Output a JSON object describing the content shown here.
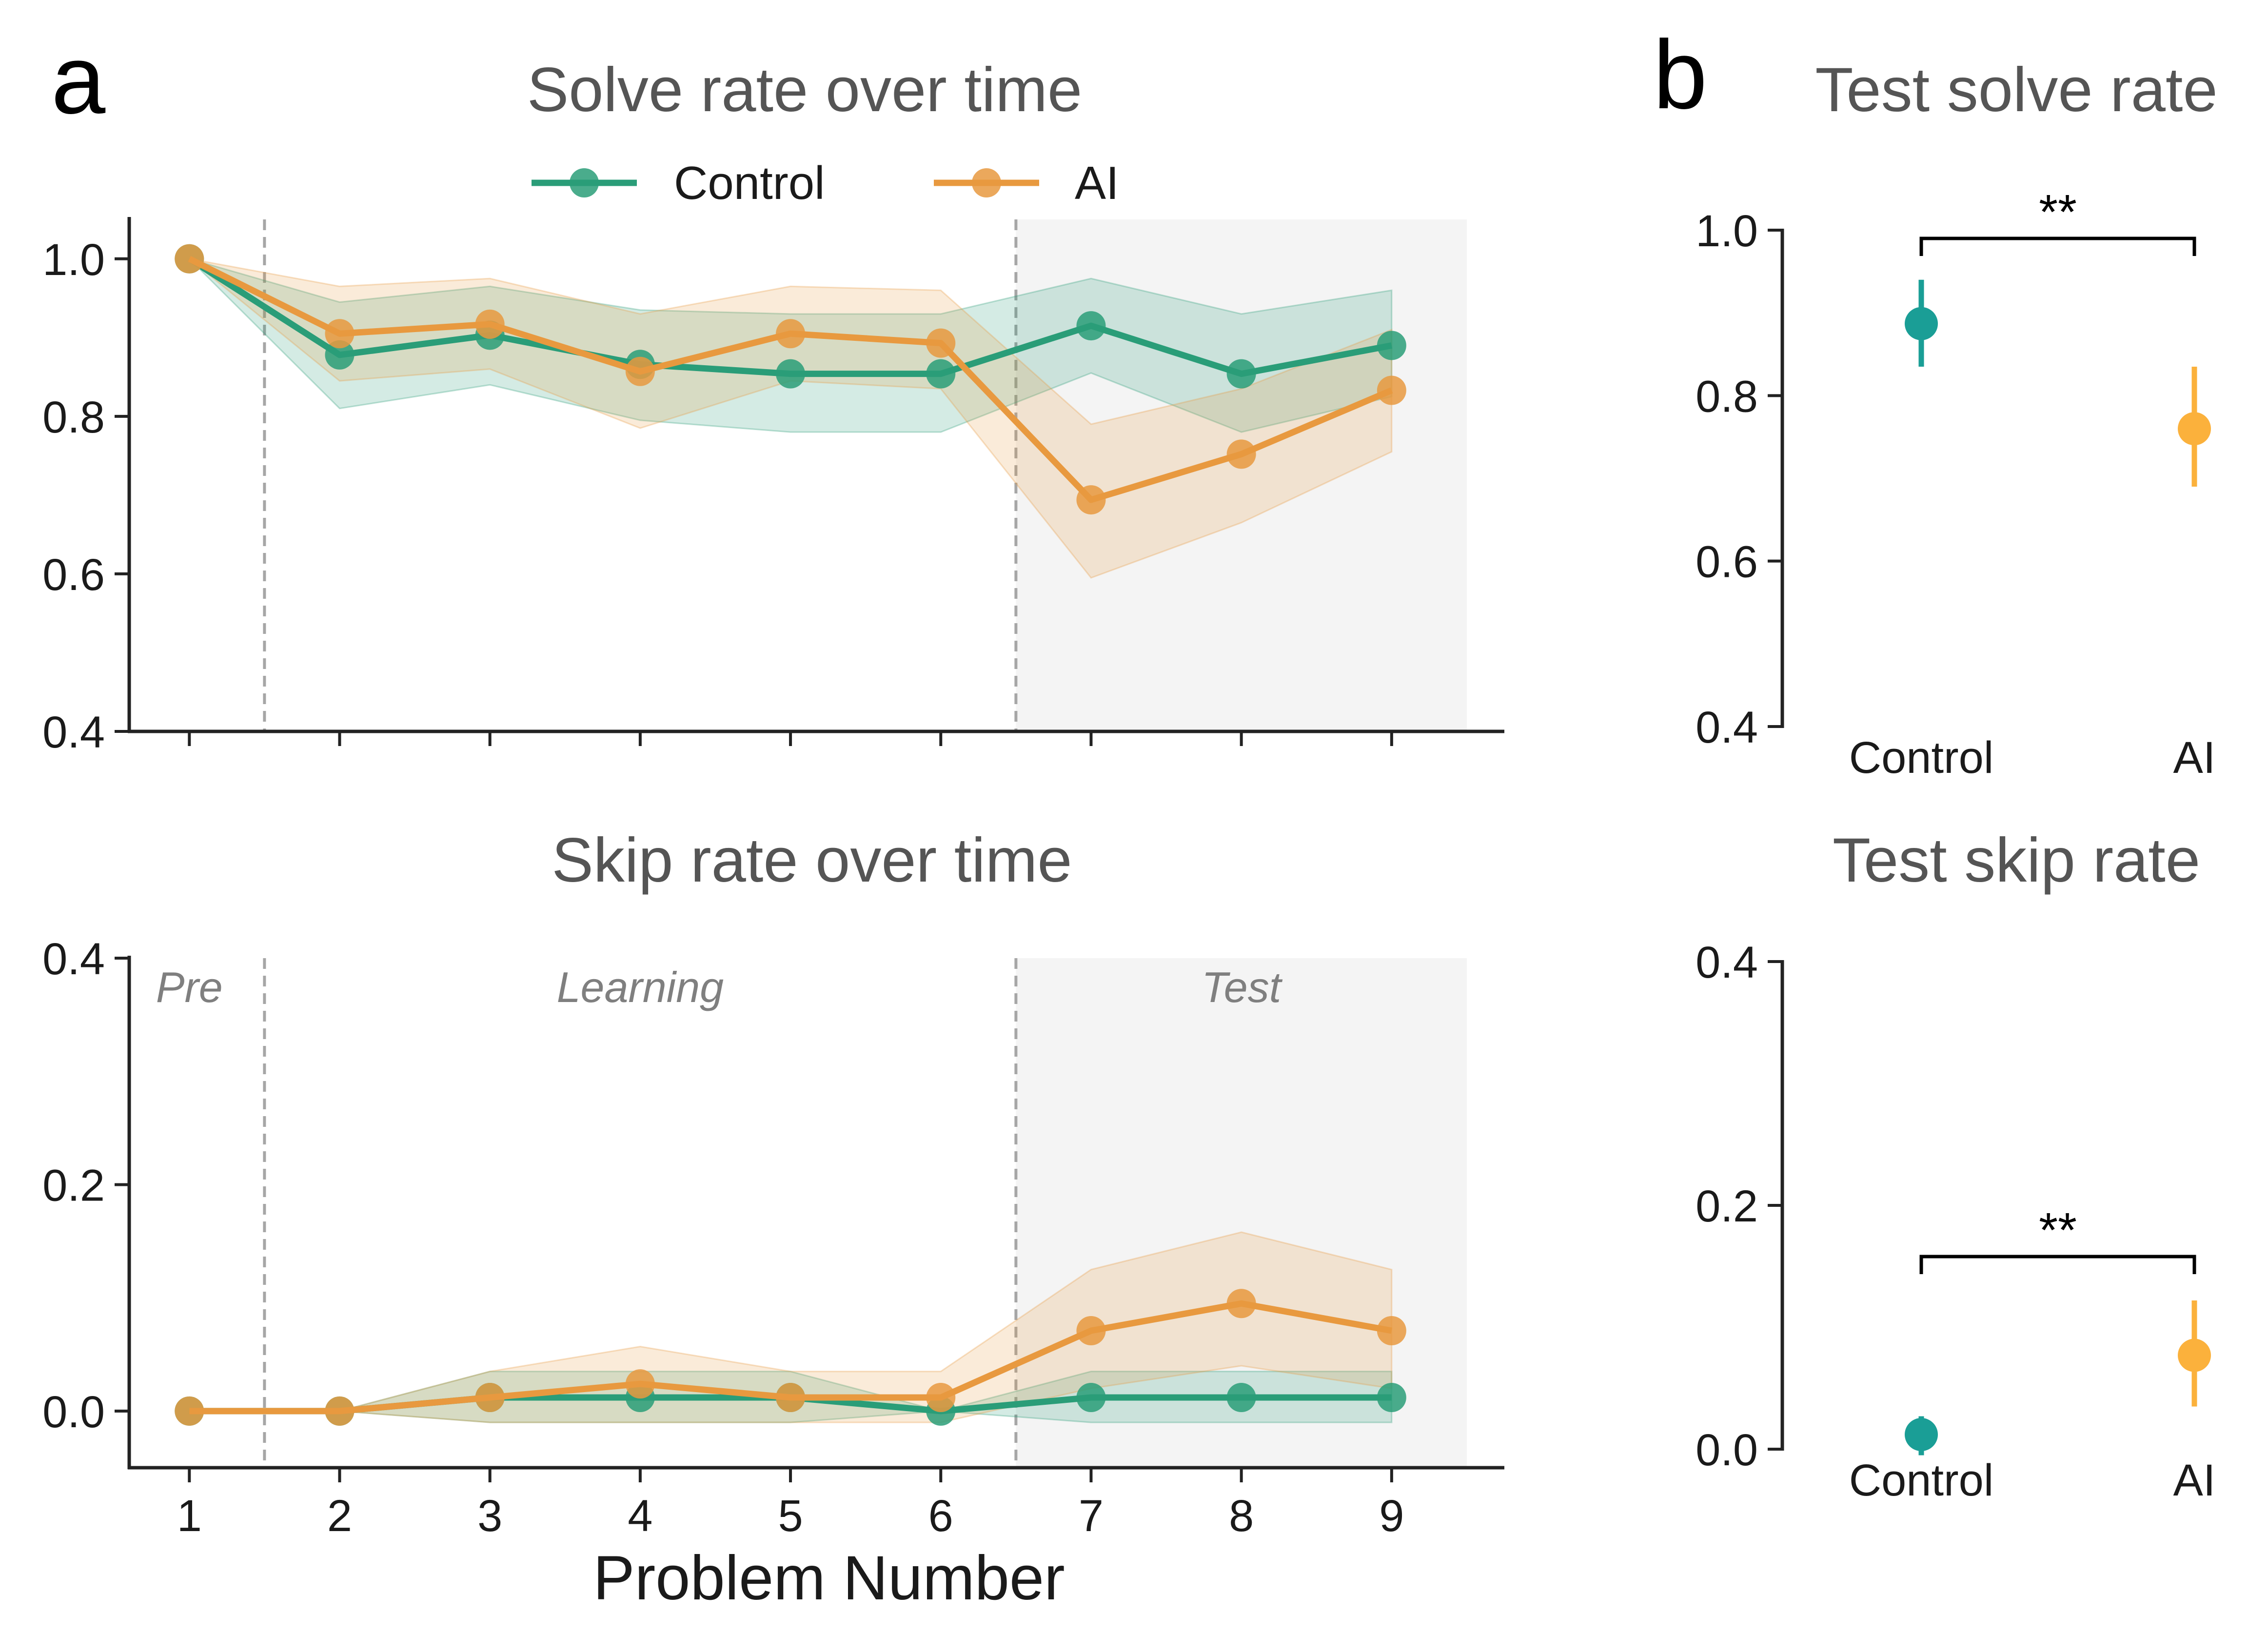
{
  "panel_labels": [
    "a",
    "b"
  ],
  "colors": {
    "control": "#2a9d78",
    "ai": "#e8993f",
    "control_point": "#1a9e96",
    "ai_point": "#fbb13c",
    "test_shade": "#f4f4f4",
    "title_text": "#555555",
    "axis": "#222222",
    "region_text": "#7f7f7f",
    "divider": "#a6a6a6"
  },
  "legend": [
    "Control",
    "AI"
  ],
  "chart_data": [
    {
      "type": "line",
      "title": "Solve rate over time",
      "xlabel": "",
      "ylabel": "",
      "x": [
        1,
        2,
        3,
        4,
        5,
        6,
        7,
        8,
        9
      ],
      "xlim": [
        0.6,
        9.75
      ],
      "ylim": [
        0.4,
        1.05
      ],
      "yticks": [
        "0.4",
        "0.6",
        "0.8",
        "1.0"
      ],
      "yticks_values": [
        0.4,
        0.6,
        0.8,
        1.0
      ],
      "dividers": [
        1.5,
        6.5
      ],
      "test_region": [
        6.5,
        9.5
      ],
      "series": [
        {
          "name": "Control",
          "values": [
            1.0,
            0.878,
            0.903,
            0.866,
            0.854,
            0.854,
            0.915,
            0.854,
            0.89
          ],
          "ci_low": [
            1.0,
            0.81,
            0.84,
            0.795,
            0.78,
            0.78,
            0.855,
            0.78,
            0.825
          ],
          "ci_high": [
            1.0,
            0.945,
            0.965,
            0.935,
            0.93,
            0.93,
            0.975,
            0.93,
            0.96
          ]
        },
        {
          "name": "AI",
          "values": [
            1.0,
            0.905,
            0.917,
            0.857,
            0.905,
            0.893,
            0.694,
            0.752,
            0.833
          ],
          "ci_low": [
            1.0,
            0.845,
            0.86,
            0.785,
            0.845,
            0.835,
            0.595,
            0.665,
            0.755
          ],
          "ci_high": [
            1.0,
            0.965,
            0.975,
            0.93,
            0.965,
            0.96,
            0.79,
            0.835,
            0.91
          ]
        }
      ]
    },
    {
      "type": "line",
      "title": "Skip rate over time",
      "xlabel": "Problem Number",
      "ylabel": "",
      "x": [
        1,
        2,
        3,
        4,
        5,
        6,
        7,
        8,
        9
      ],
      "xtick_labels": [
        "1",
        "2",
        "3",
        "4",
        "5",
        "6",
        "7",
        "8",
        "9"
      ],
      "xlim": [
        0.6,
        9.75
      ],
      "ylim": [
        -0.05,
        0.4
      ],
      "yticks": [
        "0.0",
        "0.2",
        "0.4"
      ],
      "yticks_values": [
        0.0,
        0.2,
        0.4
      ],
      "dividers": [
        1.5,
        6.5
      ],
      "test_region": [
        6.5,
        9.5
      ],
      "region_labels": [
        {
          "text": "Pre",
          "x": 1.0
        },
        {
          "text": "Learning",
          "x": 4.0
        },
        {
          "text": "Test",
          "x": 8.0
        }
      ],
      "series": [
        {
          "name": "Control",
          "values": [
            0.0,
            0.0,
            0.012,
            0.012,
            0.012,
            0.0,
            0.012,
            0.012,
            0.012
          ],
          "ci_low": [
            0.0,
            0.0,
            -0.01,
            -0.01,
            -0.01,
            0.0,
            -0.01,
            -0.01,
            -0.01
          ],
          "ci_high": [
            0.0,
            0.0,
            0.035,
            0.035,
            0.035,
            0.0,
            0.035,
            0.035,
            0.035
          ]
        },
        {
          "name": "AI",
          "values": [
            0.0,
            0.0,
            0.012,
            0.024,
            0.012,
            0.012,
            0.071,
            0.095,
            0.071
          ],
          "ci_low": [
            0.0,
            0.0,
            -0.01,
            -0.01,
            -0.01,
            -0.01,
            0.02,
            0.04,
            0.02
          ],
          "ci_high": [
            0.0,
            0.0,
            0.035,
            0.057,
            0.035,
            0.035,
            0.125,
            0.158,
            0.125
          ]
        }
      ]
    },
    {
      "type": "scatter",
      "title": "Test solve rate",
      "categories": [
        "Control",
        "AI"
      ],
      "values": [
        0.887,
        0.76
      ],
      "ci_low": [
        0.835,
        0.69
      ],
      "ci_high": [
        0.94,
        0.835
      ],
      "ylim": [
        0.4,
        1.0
      ],
      "yticks": [
        "0.4",
        "0.6",
        "0.8",
        "1.0"
      ],
      "yticks_values": [
        0.4,
        0.6,
        0.8,
        1.0
      ],
      "significance": "**",
      "bracket_y": 0.99
    },
    {
      "type": "scatter",
      "title": "Test skip rate",
      "categories": [
        "Control",
        "AI"
      ],
      "values": [
        0.012,
        0.077
      ],
      "ci_low": [
        -0.005,
        0.035
      ],
      "ci_high": [
        0.027,
        0.122
      ],
      "ylim": [
        0.0,
        0.4
      ],
      "yticks": [
        "0.0",
        "0.2",
        "0.4"
      ],
      "yticks_values": [
        0.0,
        0.2,
        0.4
      ],
      "significance": "**",
      "bracket_y": 0.158
    }
  ]
}
